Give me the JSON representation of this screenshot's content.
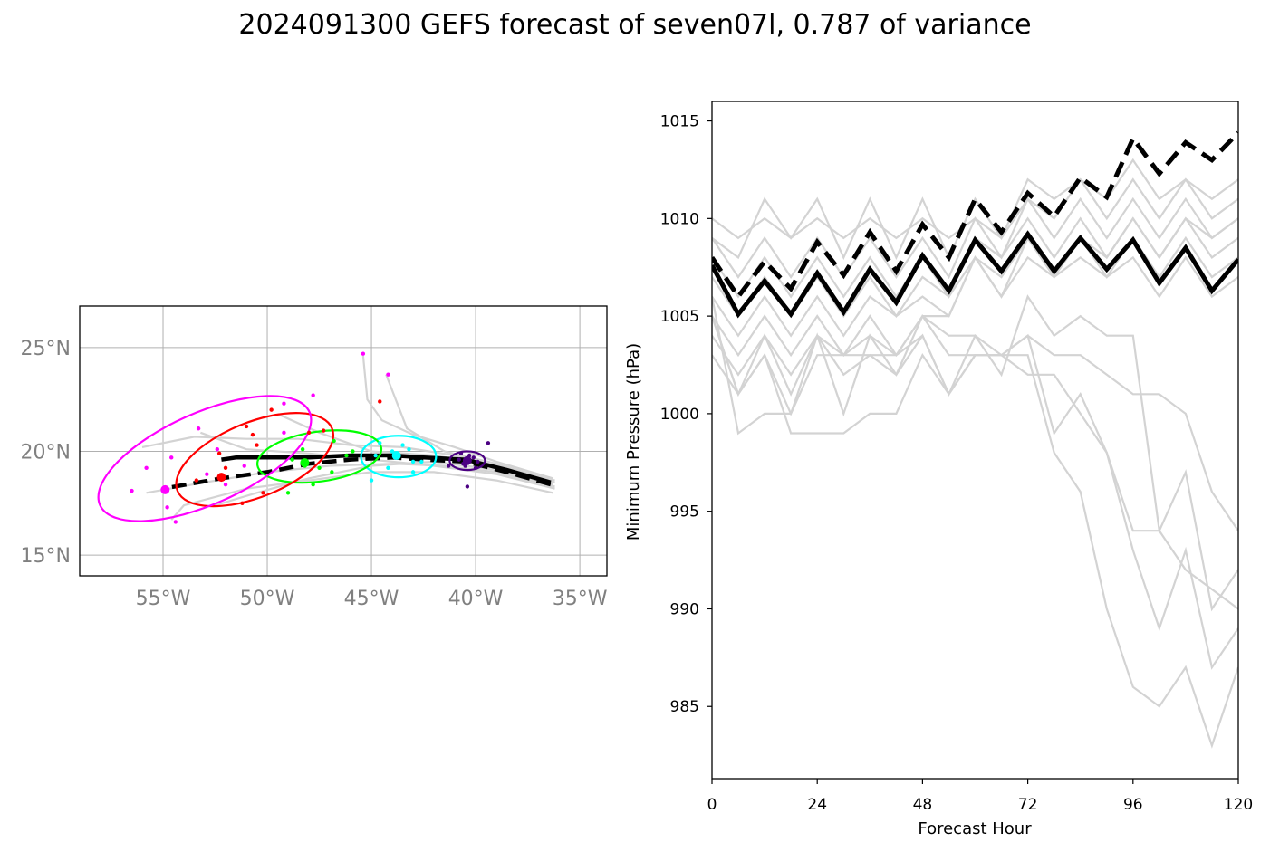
{
  "title": "2024091300 GEFS forecast of seven07l, 0.787 of variance",
  "chart_data": [
    {
      "type": "scatter",
      "panel": "track-map",
      "x_ticks": [
        -55,
        -50,
        -45,
        -40,
        -35
      ],
      "x_tick_labels": [
        "55°W",
        "50°W",
        "45°W",
        "40°W",
        "35°W"
      ],
      "y_ticks": [
        15,
        20,
        25
      ],
      "y_tick_labels": [
        "15°N",
        "20°N",
        "25°N"
      ],
      "xlim": [
        -59,
        -33.7
      ],
      "ylim": [
        14,
        27
      ],
      "grid": true,
      "colors": {
        "members": "#d3d3d3",
        "mean_track": "#000000",
        "t0": "#4b0082",
        "t24": "#00ffff",
        "t48": "#00ff00",
        "t72": "#ff0000",
        "t96": "#ff00ff"
      },
      "mean_track_solid": [
        [
          -36.4,
          18.5
        ],
        [
          -38.5,
          19.1
        ],
        [
          -40.5,
          19.6
        ],
        [
          -42.5,
          19.7
        ],
        [
          -44,
          19.8
        ],
        [
          -46,
          19.8
        ],
        [
          -48,
          19.7
        ],
        [
          -50,
          19.7
        ],
        [
          -51.5,
          19.7
        ],
        [
          -52.2,
          19.6
        ]
      ],
      "mean_track_dashed": [
        [
          -36.4,
          18.4
        ],
        [
          -38.5,
          19.0
        ],
        [
          -40.5,
          19.5
        ],
        [
          -42.5,
          19.6
        ],
        [
          -44,
          19.7
        ],
        [
          -46,
          19.6
        ],
        [
          -48,
          19.4
        ],
        [
          -50,
          19.0
        ],
        [
          -52.2,
          18.7
        ],
        [
          -55.0,
          18.2
        ]
      ],
      "member_tracks": [
        [
          [
            -36.2,
            18.5
          ],
          [
            -39,
            19.3
          ],
          [
            -41,
            19.8
          ],
          [
            -43.5,
            20.2
          ],
          [
            -46,
            20.3
          ],
          [
            -48.5,
            20.6
          ],
          [
            -51,
            20.6
          ],
          [
            -53.5,
            20.7
          ],
          [
            -56,
            20.2
          ]
        ],
        [
          [
            -36.2,
            18.3
          ],
          [
            -39,
            19.0
          ],
          [
            -41.5,
            19.3
          ],
          [
            -44,
            19.4
          ],
          [
            -47,
            19.3
          ],
          [
            -50,
            19.0
          ],
          [
            -53,
            18.5
          ],
          [
            -55.8,
            18.0
          ]
        ],
        [
          [
            -36.3,
            18.0
          ],
          [
            -39,
            18.6
          ],
          [
            -42,
            19.0
          ],
          [
            -45,
            19.0
          ],
          [
            -48,
            18.6
          ],
          [
            -51,
            18.2
          ],
          [
            -54,
            17.4
          ],
          [
            -54.6,
            16.7
          ]
        ],
        [
          [
            -36.3,
            18.7
          ],
          [
            -39,
            19.5
          ],
          [
            -41,
            20.2
          ],
          [
            -43,
            20.8
          ],
          [
            -44.5,
            21.5
          ],
          [
            -45.2,
            22.5
          ],
          [
            -45.4,
            24.6
          ]
        ],
        [
          [
            -36.3,
            18.6
          ],
          [
            -39,
            19.4
          ],
          [
            -41.5,
            20.0
          ],
          [
            -43.3,
            21.1
          ],
          [
            -44.3,
            23.7
          ]
        ],
        [
          [
            -36.2,
            18.2
          ],
          [
            -39,
            18.9
          ],
          [
            -42,
            19.3
          ],
          [
            -45,
            19.6
          ],
          [
            -48,
            19.9
          ],
          [
            -51,
            20.1
          ],
          [
            -53.2,
            20.9
          ]
        ],
        [
          [
            -36.3,
            18.4
          ],
          [
            -39,
            19.1
          ],
          [
            -42,
            19.5
          ],
          [
            -45,
            19.3
          ],
          [
            -48,
            18.7
          ],
          [
            -50.5,
            18.0
          ],
          [
            -52.5,
            17.4
          ]
        ],
        [
          [
            -36.2,
            18.6
          ],
          [
            -39,
            19.3
          ],
          [
            -42,
            19.8
          ],
          [
            -45,
            20.0
          ],
          [
            -47.5,
            20.9
          ],
          [
            -49.5,
            21.8
          ]
        ]
      ],
      "ellipses": [
        {
          "time": "t0",
          "center": [
            -40.4,
            19.55
          ],
          "rx_deg": 0.85,
          "ry_deg": 0.45,
          "angle_deg": 0
        },
        {
          "time": "t24",
          "center": [
            -43.7,
            19.75
          ],
          "rx_deg": 1.8,
          "ry_deg": 1.0,
          "angle_deg": 0
        },
        {
          "time": "t48",
          "center": [
            -47.5,
            19.75
          ],
          "rx_deg": 3.0,
          "ry_deg": 1.2,
          "angle_deg": -8
        },
        {
          "time": "t72",
          "center": [
            -50.6,
            19.6
          ],
          "rx_deg": 4.0,
          "ry_deg": 1.8,
          "angle_deg": -22
        },
        {
          "time": "t96",
          "center": [
            -53.0,
            19.65
          ],
          "rx_deg": 5.5,
          "ry_deg": 2.2,
          "angle_deg": -24
        }
      ],
      "mean_positions": [
        {
          "time": "t0",
          "point": [
            -40.4,
            19.55
          ]
        },
        {
          "time": "t24",
          "point": [
            -43.8,
            19.8
          ]
        },
        {
          "time": "t48",
          "point": [
            -48.2,
            19.45
          ]
        },
        {
          "time": "t72",
          "point": [
            -52.2,
            18.75
          ]
        },
        {
          "time": "t96",
          "point": [
            -54.9,
            18.15
          ]
        }
      ],
      "member_positions": {
        "t0": [
          [
            -40.1,
            19.7
          ],
          [
            -40.6,
            19.4
          ],
          [
            -40.3,
            19.8
          ],
          [
            -40.8,
            19.6
          ],
          [
            -39.9,
            19.5
          ],
          [
            -40.5,
            19.3
          ],
          [
            -39.4,
            20.4
          ],
          [
            -40.4,
            18.3
          ],
          [
            -41.3,
            19.3
          ],
          [
            -40.0,
            19.2
          ],
          [
            -40.7,
            19.9
          ]
        ],
        "t24": [
          [
            -43.0,
            19.5
          ],
          [
            -43.5,
            20.3
          ],
          [
            -44.2,
            19.2
          ],
          [
            -45.0,
            18.6
          ],
          [
            -43.2,
            20.1
          ],
          [
            -44.6,
            20.4
          ],
          [
            -43.0,
            19.0
          ],
          [
            -44.0,
            20.0
          ],
          [
            -42.6,
            19.5
          ],
          [
            -44.8,
            19.8
          ]
        ],
        "t48": [
          [
            -46.8,
            20.5
          ],
          [
            -47.5,
            19.2
          ],
          [
            -48.2,
            19.3
          ],
          [
            -49.0,
            18.0
          ],
          [
            -46.2,
            19.8
          ],
          [
            -47.8,
            18.4
          ],
          [
            -48.8,
            19.6
          ],
          [
            -46.9,
            19.0
          ],
          [
            -45.9,
            20.0
          ],
          [
            -48.3,
            20.1
          ]
        ],
        "t72": [
          [
            -49.8,
            22.0
          ],
          [
            -51.0,
            21.2
          ],
          [
            -50.5,
            20.3
          ],
          [
            -52.3,
            19.9
          ],
          [
            -51.2,
            17.5
          ],
          [
            -50.2,
            18.0
          ],
          [
            -53.4,
            18.6
          ],
          [
            -52.0,
            19.2
          ],
          [
            -47.3,
            21.0
          ],
          [
            -44.6,
            22.4
          ],
          [
            -48.0,
            20.9
          ],
          [
            -50.7,
            20.8
          ]
        ],
        "t96": [
          [
            -55.8,
            19.2
          ],
          [
            -54.6,
            19.7
          ],
          [
            -56.5,
            18.1
          ],
          [
            -54.8,
            17.3
          ],
          [
            -52.4,
            20.1
          ],
          [
            -53.3,
            21.1
          ],
          [
            -49.2,
            22.3
          ],
          [
            -47.8,
            22.7
          ],
          [
            -45.4,
            24.7
          ],
          [
            -44.2,
            23.7
          ],
          [
            -52.0,
            18.4
          ],
          [
            -51.1,
            19.3
          ],
          [
            -54.4,
            16.6
          ],
          [
            -49.2,
            20.9
          ],
          [
            -52.9,
            18.9
          ]
        ]
      }
    },
    {
      "type": "line",
      "panel": "pressure",
      "xlabel": "Forecast Hour",
      "ylabel": "Minimum Pressure (hPa)",
      "x_ticks": [
        0,
        24,
        48,
        72,
        96,
        120
      ],
      "y_ticks": [
        985,
        990,
        995,
        1000,
        1005,
        1010,
        1015
      ],
      "xlim": [
        0,
        120
      ],
      "ylim": [
        981.3,
        1016.0
      ],
      "x": [
        0,
        6,
        12,
        18,
        24,
        30,
        36,
        42,
        48,
        54,
        60,
        66,
        72,
        78,
        84,
        90,
        96,
        102,
        108,
        114,
        120
      ],
      "colors": {
        "members": "#d3d3d3",
        "mean": "#000000"
      },
      "series": [
        {
          "style": "dashed",
          "values": [
            1008,
            1006,
            1007.8,
            1006.4,
            1008.8,
            1007.1,
            1009.3,
            1007.3,
            1009.7,
            1008,
            1011,
            1009.3,
            1011.3,
            1010.1,
            1012.1,
            1011.1,
            1014.1,
            1012.3,
            1013.9,
            1013.0,
            1014.4
          ]
        },
        {
          "style": "solid",
          "values": [
            1007.6,
            1005.1,
            1006.8,
            1005.1,
            1007.2,
            1005.2,
            1007.4,
            1005.7,
            1008.1,
            1006.3,
            1008.9,
            1007.3,
            1009.2,
            1007.3,
            1009.0,
            1007.4,
            1008.9,
            1006.7,
            1008.5,
            1006.3,
            1007.9
          ]
        },
        {
          "style": "member",
          "values": [
            1010,
            1009,
            1010,
            1009,
            1010,
            1009,
            1010,
            1009,
            1010,
            1009,
            1010,
            1009,
            1011,
            1010,
            1012,
            1011,
            1013,
            1011,
            1012,
            1011,
            1012
          ]
        },
        {
          "style": "member",
          "values": [
            1009,
            1008,
            1011,
            1009,
            1011,
            1008,
            1011,
            1008,
            1011,
            1008,
            1011,
            1009,
            1012,
            1011,
            1012,
            1010,
            1012,
            1010,
            1012,
            1010,
            1011
          ]
        },
        {
          "style": "member",
          "values": [
            1009,
            1007,
            1009,
            1007,
            1009,
            1007,
            1009,
            1007,
            1009,
            1007,
            1010,
            1008,
            1011,
            1009,
            1011,
            1009,
            1011,
            1009,
            1011,
            1009,
            1010
          ]
        },
        {
          "style": "member",
          "values": [
            1008,
            1006,
            1008,
            1006,
            1008,
            1006,
            1008,
            1006,
            1008,
            1006,
            1009,
            1008,
            1010,
            1008,
            1010,
            1008,
            1010,
            1008,
            1010,
            1008,
            1009
          ]
        },
        {
          "style": "member",
          "values": [
            1007,
            1005,
            1007,
            1005,
            1007,
            1005,
            1007,
            1005,
            1007,
            1006,
            1008,
            1007,
            1009,
            1007,
            1009,
            1007,
            1009,
            1007,
            1009,
            1007,
            1008
          ]
        },
        {
          "style": "member",
          "values": [
            1006,
            1004,
            1006,
            1004,
            1006,
            1004,
            1006,
            1005,
            1006,
            1005,
            1008,
            1006,
            1008,
            1007,
            1008,
            1007,
            1008,
            1006,
            1008,
            1006,
            1007
          ]
        },
        {
          "style": "member",
          "values": [
            1005,
            1003,
            1005,
            1003,
            1005,
            1003,
            1005,
            1003,
            1005,
            1005,
            1008,
            1006,
            1009,
            1007,
            1009,
            1008,
            1010,
            1008,
            1010,
            1009,
            1010
          ]
        },
        {
          "style": "member",
          "values": [
            1005,
            1001,
            1004,
            1001,
            1004,
            1002,
            1003,
            1002,
            1005,
            1004,
            1004,
            1002,
            1006,
            1004,
            1005,
            1004,
            1004,
            994,
            997,
            990,
            992
          ]
        },
        {
          "style": "member",
          "values": [
            1004,
            1002,
            1004,
            1002,
            1004,
            1003,
            1004,
            1003,
            1004,
            1001,
            1004,
            1003,
            1004,
            999,
            1001,
            998,
            993,
            989,
            993,
            987,
            989
          ]
        },
        {
          "style": "member",
          "values": [
            1003,
            1001,
            1003,
            1000,
            1003,
            1003,
            1003,
            1003,
            1005,
            1003,
            1003,
            1003,
            1003,
            998,
            996,
            990,
            986,
            985,
            987,
            983,
            987
          ]
        },
        {
          "style": "member",
          "values": [
            1006,
            999,
            1000,
            1000,
            1004,
            1000,
            1004,
            1002,
            1004,
            1001,
            1003,
            1003,
            1004,
            1003,
            1003,
            1002,
            1001,
            1001,
            1000,
            996,
            994
          ]
        },
        {
          "style": "member",
          "values": [
            1005,
            1001,
            1003,
            999,
            999,
            999,
            1000,
            1000,
            1003,
            1001,
            1003,
            1003,
            1002,
            1002,
            1000,
            998,
            994,
            994,
            992,
            991,
            990
          ]
        }
      ]
    }
  ]
}
